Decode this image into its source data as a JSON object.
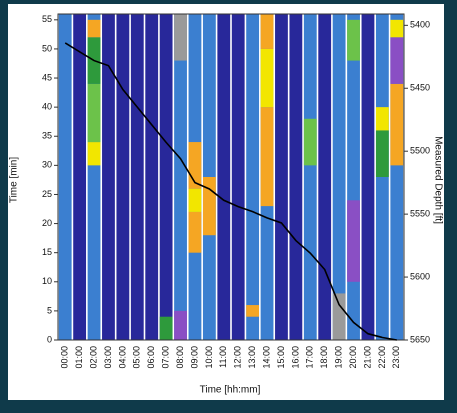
{
  "chart_data": {
    "type": "heatmap",
    "categories": [
      "00:00",
      "01:00",
      "02:00",
      "03:00",
      "04:00",
      "05:00",
      "06:00",
      "07:00",
      "08:00",
      "09:00",
      "10:00",
      "11:00",
      "12:00",
      "13:00",
      "14:00",
      "15:00",
      "16:00",
      "17:00",
      "18:00",
      "19:00",
      "20:00",
      "21:00",
      "22:00",
      "23:00"
    ],
    "x_label": "Time [hh:mm]",
    "y_label": "Time [min]",
    "y2_label": "Measured Depth [ft]",
    "ylim": [
      0,
      56
    ],
    "yticks": [
      0,
      5,
      10,
      15,
      20,
      25,
      30,
      35,
      40,
      45,
      50,
      55
    ],
    "y2lim": [
      5650,
      5391
    ],
    "y2ticks": [
      5400,
      5450,
      5500,
      5550,
      5600,
      5650
    ],
    "bands": [
      [
        {
          "from": 0,
          "to": 56,
          "color": "#3b7fd0"
        }
      ],
      [
        {
          "from": 0,
          "to": 56,
          "color": "#28289a"
        }
      ],
      [
        {
          "from": 0,
          "to": 56,
          "color": "#3b7fd0"
        },
        {
          "from": 30,
          "to": 34,
          "color": "#f2e600"
        },
        {
          "from": 34,
          "to": 44,
          "color": "#6cc24a"
        },
        {
          "from": 44,
          "to": 52,
          "color": "#2e9a3c"
        },
        {
          "from": 52,
          "to": 55,
          "color": "#f5a623"
        }
      ],
      [
        {
          "from": 0,
          "to": 56,
          "color": "#28289a"
        }
      ],
      [
        {
          "from": 0,
          "to": 56,
          "color": "#28289a"
        }
      ],
      [
        {
          "from": 0,
          "to": 56,
          "color": "#28289a"
        }
      ],
      [
        {
          "from": 0,
          "to": 56,
          "color": "#28289a"
        }
      ],
      [
        {
          "from": 0,
          "to": 56,
          "color": "#28289a"
        },
        {
          "from": 0,
          "to": 4,
          "color": "#2e9a3c"
        }
      ],
      [
        {
          "from": 0,
          "to": 56,
          "color": "#3b7fd0"
        },
        {
          "from": 0,
          "to": 5,
          "color": "#8a4fc4"
        },
        {
          "from": 48,
          "to": 56,
          "color": "#9a9a9a"
        }
      ],
      [
        {
          "from": 0,
          "to": 56,
          "color": "#3b7fd0"
        },
        {
          "from": 15,
          "to": 22,
          "color": "#f5a623"
        },
        {
          "from": 22,
          "to": 26,
          "color": "#f2e600"
        },
        {
          "from": 26,
          "to": 34,
          "color": "#f5a623"
        }
      ],
      [
        {
          "from": 0,
          "to": 56,
          "color": "#3b7fd0"
        },
        {
          "from": 18,
          "to": 28,
          "color": "#f5a623"
        }
      ],
      [
        {
          "from": 0,
          "to": 56,
          "color": "#28289a"
        }
      ],
      [
        {
          "from": 0,
          "to": 56,
          "color": "#28289a"
        }
      ],
      [
        {
          "from": 0,
          "to": 56,
          "color": "#3b7fd0"
        },
        {
          "from": 4,
          "to": 6,
          "color": "#f5a623"
        }
      ],
      [
        {
          "from": 0,
          "to": 56,
          "color": "#3b7fd0"
        },
        {
          "from": 23,
          "to": 40,
          "color": "#f5a623"
        },
        {
          "from": 40,
          "to": 50,
          "color": "#f2e600"
        },
        {
          "from": 50,
          "to": 56,
          "color": "#f5a623"
        }
      ],
      [
        {
          "from": 0,
          "to": 56,
          "color": "#28289a"
        }
      ],
      [
        {
          "from": 0,
          "to": 56,
          "color": "#28289a"
        }
      ],
      [
        {
          "from": 0,
          "to": 56,
          "color": "#3b7fd0"
        },
        {
          "from": 30,
          "to": 38,
          "color": "#6cc24a"
        }
      ],
      [
        {
          "from": 0,
          "to": 56,
          "color": "#28289a"
        }
      ],
      [
        {
          "from": 0,
          "to": 56,
          "color": "#3b7fd0"
        },
        {
          "from": 0,
          "to": 8,
          "color": "#9a9a9a"
        }
      ],
      [
        {
          "from": 0,
          "to": 56,
          "color": "#3b7fd0"
        },
        {
          "from": 10,
          "to": 24,
          "color": "#8a4fc4"
        },
        {
          "from": 48,
          "to": 55,
          "color": "#6cc24a"
        }
      ],
      [
        {
          "from": 0,
          "to": 56,
          "color": "#28289a"
        }
      ],
      [
        {
          "from": 0,
          "to": 56,
          "color": "#3b7fd0"
        },
        {
          "from": 28,
          "to": 36,
          "color": "#2e9a3c"
        },
        {
          "from": 36,
          "to": 40,
          "color": "#f2e600"
        }
      ],
      [
        {
          "from": 0,
          "to": 56,
          "color": "#3b7fd0"
        },
        {
          "from": 30,
          "to": 44,
          "color": "#f5a623"
        },
        {
          "from": 44,
          "to": 52,
          "color": "#8a4fc4"
        },
        {
          "from": 52,
          "to": 55,
          "color": "#f2e600"
        }
      ]
    ],
    "series": [
      {
        "name": "Measured Depth",
        "color": "#000000",
        "axis": "y2",
        "values": [
          5414,
          5421,
          5428,
          5432,
          5451,
          5465,
          5479,
          5493,
          5506,
          5525,
          5530,
          5539,
          5544,
          5548,
          5553,
          5557,
          5571,
          5581,
          5594,
          5622,
          5636,
          5645,
          5648,
          5650
        ]
      }
    ]
  }
}
